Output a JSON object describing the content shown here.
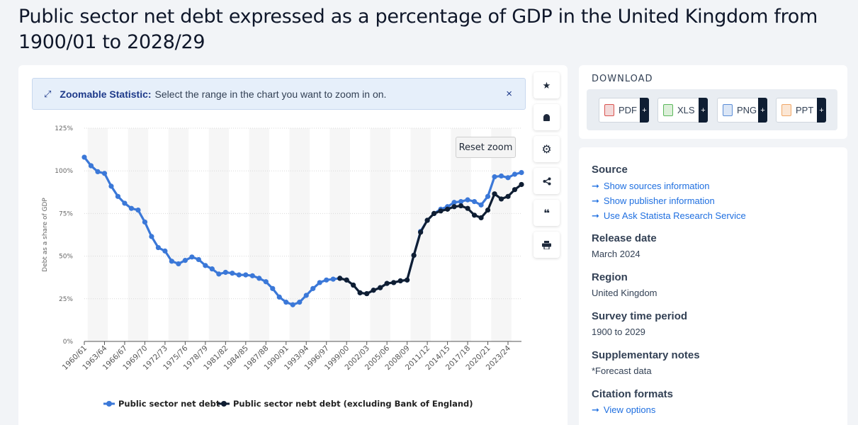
{
  "page": {
    "title": "Public sector net debt expressed as a percentage of GDP in the United Kingdom from 1900/01 to 2028/29"
  },
  "zoom_banner": {
    "label": "Zoomable Statistic:",
    "text": "Select the range in the chart you want to zoom in on.",
    "close": "×"
  },
  "reset_zoom_label": "Reset zoom",
  "tools": [
    {
      "name": "star-icon",
      "glyph": "★"
    },
    {
      "name": "bell-icon",
      "glyph": "🔔"
    },
    {
      "name": "gear-icon",
      "glyph": "⚙"
    },
    {
      "name": "share-icon",
      "glyph": "⋖"
    },
    {
      "name": "quote-icon",
      "glyph": "❝"
    },
    {
      "name": "print-icon",
      "glyph": "⎙"
    }
  ],
  "download": {
    "title": "DOWNLOAD",
    "buttons": [
      {
        "label": "PDF",
        "icon": "pdf-file-icon",
        "color": "#d9534f"
      },
      {
        "label": "XLS",
        "icon": "xls-file-icon",
        "color": "#5cb85c"
      },
      {
        "label": "PNG",
        "icon": "png-file-icon",
        "color": "#5b8dd6"
      },
      {
        "label": "PPT",
        "icon": "ppt-file-icon",
        "color": "#f0a868"
      }
    ],
    "plus": "+"
  },
  "info": {
    "source_h": "Source",
    "source_links": [
      "Show sources information",
      "Show publisher information",
      "Use Ask Statista Research Service"
    ],
    "release_h": "Release date",
    "release_v": "March 2024",
    "region_h": "Region",
    "region_v": "United Kingdom",
    "period_h": "Survey time period",
    "period_v": "1900 to 2029",
    "notes_h": "Supplementary notes",
    "notes_v": "*Forecast data",
    "citation_h": "Citation formats",
    "citation_link": "View options",
    "arrow": "➞"
  },
  "colors": {
    "series1": "#3b78d8",
    "series2": "#0f1e33",
    "link": "#1f6fe0"
  },
  "chart_data": {
    "type": "line",
    "ylabel": "Debt as a share of GDP",
    "xlabel": "",
    "ylim": [
      0,
      125
    ],
    "yticks": [
      "0%",
      "25%",
      "50%",
      "75%",
      "100%",
      "125%"
    ],
    "ytick_values": [
      0,
      25,
      50,
      75,
      100,
      125
    ],
    "x": [
      "1960/61",
      "1961/62",
      "1962/63",
      "1963/64",
      "1964/65",
      "1965/66",
      "1966/67",
      "1967/68",
      "1968/69",
      "1969/70",
      "1970/71",
      "1971/72",
      "1972/73",
      "1973/74",
      "1974/75",
      "1975/76",
      "1976/77",
      "1977/78",
      "1978/79",
      "1979/80",
      "1980/81",
      "1981/82",
      "1982/83",
      "1983/84",
      "1984/85",
      "1985/86",
      "1986/87",
      "1987/88",
      "1988/89",
      "1989/90",
      "1990/91",
      "1991/92",
      "1992/93",
      "1993/94",
      "1994/95",
      "1995/96",
      "1996/97",
      "1997/98",
      "1998/99",
      "1999/00",
      "2000/01",
      "2001/02",
      "2002/03",
      "2003/04",
      "2004/05",
      "2005/06",
      "2006/07",
      "2007/08",
      "2008/09",
      "2009/10",
      "2010/11",
      "2011/12",
      "2012/13",
      "2013/14",
      "2014/15",
      "2015/16",
      "2016/17",
      "2017/18",
      "2018/19",
      "2019/20",
      "2020/21",
      "2021/22",
      "2022/23",
      "2023/24",
      "2024/25",
      "2025/26"
    ],
    "xtick_labels": [
      "1960/61",
      "1963/64",
      "1966/67",
      "1969/70",
      "1972/73",
      "1975/76",
      "1978/79",
      "1981/82",
      "1984/85",
      "1987/88",
      "1990/91",
      "1993/94",
      "1996/97",
      "1999/00",
      "2002/03",
      "2005/06",
      "2008/09",
      "2011/12",
      "2014/15",
      "2017/18",
      "2020/21",
      "2023/24"
    ],
    "series": [
      {
        "name": "Public sector net debt",
        "values": [
          108,
          103,
          99.5,
          98.5,
          91,
          85,
          81,
          78,
          77,
          70,
          61.5,
          55,
          53,
          47,
          45.5,
          47.5,
          49.5,
          48,
          44.5,
          42.5,
          39.5,
          40.5,
          40,
          39,
          39,
          38.5,
          37,
          35,
          31,
          26,
          23,
          21.5,
          23,
          27,
          31,
          34.5,
          36,
          36.5,
          37,
          36,
          33,
          28.5,
          28,
          30,
          31.5,
          34,
          34.5,
          35.5,
          36,
          50.5,
          64.5,
          71,
          75,
          77.5,
          79,
          81.5,
          82,
          83,
          82,
          80,
          85,
          96.5,
          97,
          96,
          98,
          99
        ]
      },
      {
        "name": "Public sector nebt debt (excluding Bank of England)",
        "values": [
          null,
          null,
          null,
          null,
          null,
          null,
          null,
          null,
          null,
          null,
          null,
          null,
          null,
          null,
          null,
          null,
          null,
          null,
          null,
          null,
          null,
          null,
          null,
          null,
          null,
          null,
          null,
          null,
          null,
          null,
          null,
          null,
          null,
          null,
          null,
          null,
          null,
          null,
          37,
          36,
          33,
          28.5,
          28,
          30,
          31.5,
          34,
          34.5,
          35.5,
          36,
          50.5,
          64,
          71,
          75,
          76.5,
          77.5,
          79,
          79.5,
          78,
          74,
          72.5,
          77,
          86.5,
          83.5,
          85,
          89,
          92
        ]
      }
    ],
    "legend_position": "bottom-center",
    "grid": true
  }
}
